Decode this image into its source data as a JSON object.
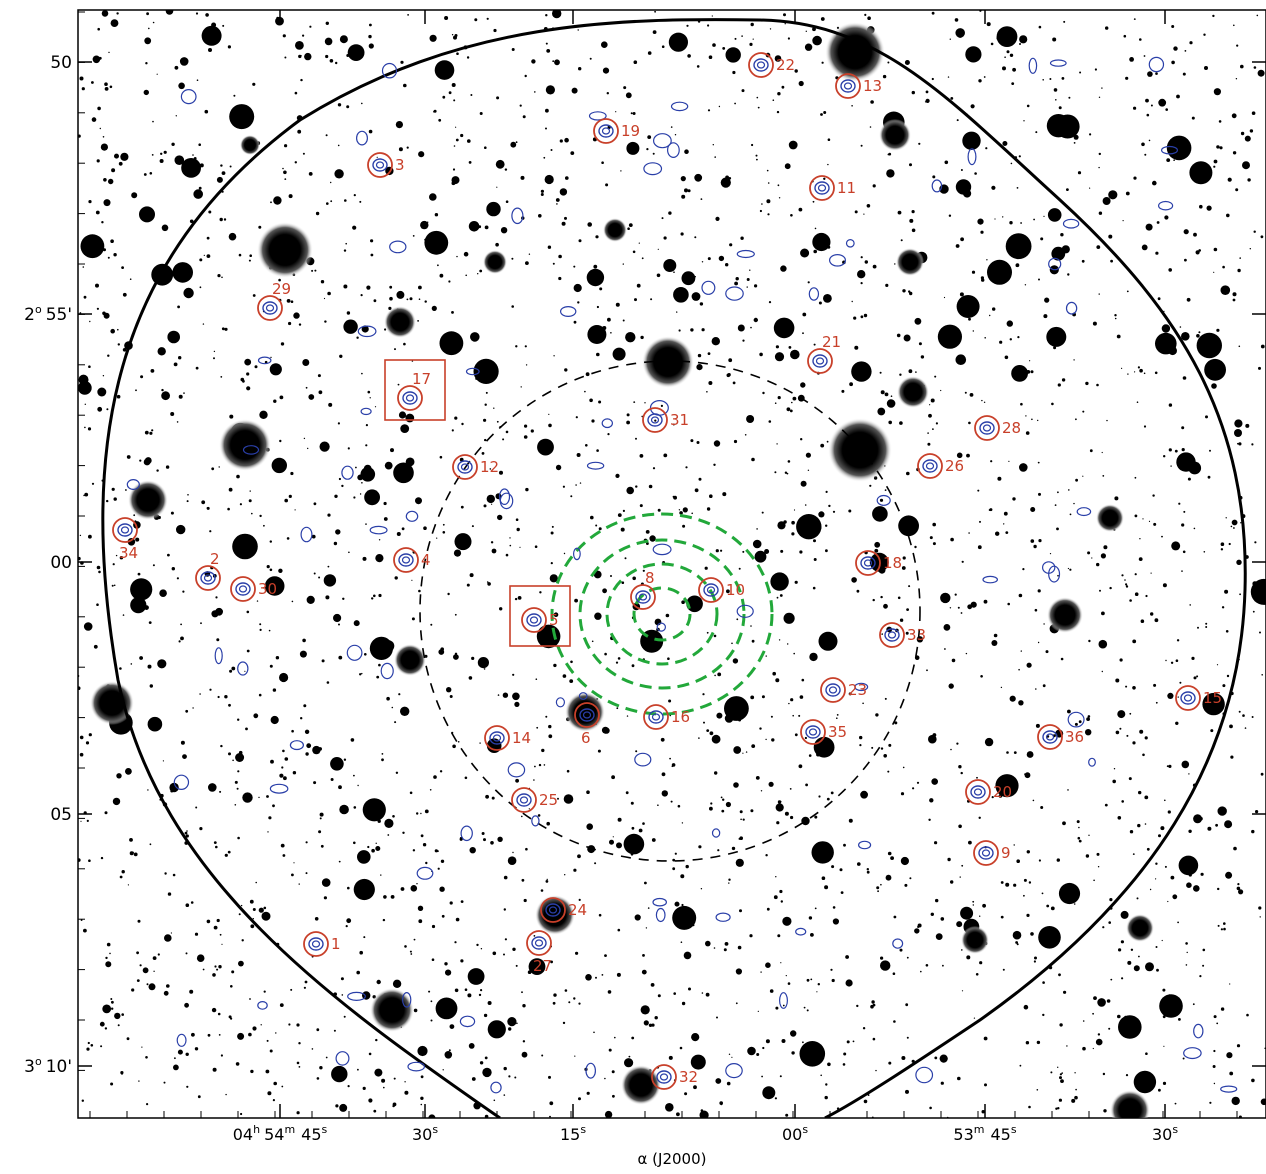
{
  "figure": {
    "x_axis_title": "α (J2000)",
    "x_ticks": [
      {
        "h": "04",
        "hsup": "h",
        "m": "54",
        "msup": "m",
        "s": "45",
        "ssup": "s"
      },
      {
        "s": "30",
        "ssup": "s"
      },
      {
        "s": "15",
        "ssup": "s"
      },
      {
        "s": "00",
        "ssup": "s"
      },
      {
        "h": "",
        "hsup": "",
        "m": "53",
        "msup": "m",
        "s": "45",
        "ssup": "s"
      },
      {
        "s": "30",
        "ssup": "s"
      }
    ],
    "y_ticks": [
      {
        "label": "50"
      },
      {
        "deg": "2",
        "degsup": "o",
        "label": "55'"
      },
      {
        "label": "00"
      },
      {
        "label": "05"
      },
      {
        "deg": "3",
        "degsup": "o",
        "label": "10'"
      }
    ],
    "sources": [
      {
        "id": "1"
      },
      {
        "id": "2"
      },
      {
        "id": "3"
      },
      {
        "id": "4"
      },
      {
        "id": "5"
      },
      {
        "id": "6"
      },
      {
        "id": "8"
      },
      {
        "id": "9"
      },
      {
        "id": "10"
      },
      {
        "id": "11"
      },
      {
        "id": "12"
      },
      {
        "id": "13"
      },
      {
        "id": "14"
      },
      {
        "id": "15"
      },
      {
        "id": "16"
      },
      {
        "id": "17"
      },
      {
        "id": "19"
      },
      {
        "id": "20"
      },
      {
        "id": "21"
      },
      {
        "id": "22"
      },
      {
        "id": "23"
      },
      {
        "id": "24"
      },
      {
        "id": "25"
      },
      {
        "id": "26"
      },
      {
        "id": "27"
      },
      {
        "id": "28"
      },
      {
        "id": "29"
      },
      {
        "id": "30"
      },
      {
        "id": "31"
      },
      {
        "id": "32"
      },
      {
        "id": "33"
      },
      {
        "id": "34"
      },
      {
        "id": "35"
      },
      {
        "id": "36"
      },
      {
        "id": "18"
      }
    ],
    "colors": {
      "circle": "#c8402a",
      "contour": "#2a3fa8",
      "xray": "#22a83a",
      "background": "#ffffff",
      "star": "#000000"
    }
  }
}
